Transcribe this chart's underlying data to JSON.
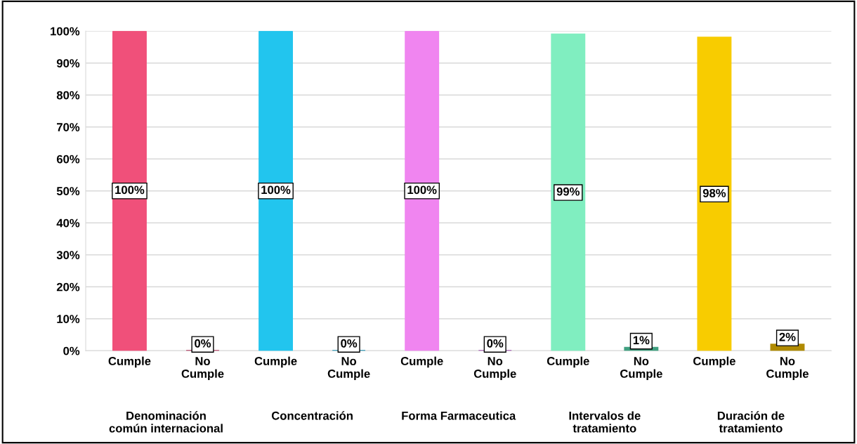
{
  "chart_data": {
    "type": "bar",
    "categories": [
      "Cumple",
      "No\nCumple",
      "Cumple",
      "No\nCumple",
      "Cumple",
      "No\nCumple",
      "Cumple",
      "No\nCumple",
      "Cumple",
      "No\nCumple"
    ],
    "values": [
      100,
      0,
      100,
      0,
      100,
      0,
      99,
      1,
      98,
      2
    ],
    "colors": [
      "#f0507a",
      "#b0305a",
      "#22c5ee",
      "#1a8fb0",
      "#f085f0",
      "#a050b0",
      "#80eec0",
      "#40a080",
      "#f8cc00",
      "#b08a00"
    ],
    "value_labels": [
      "100%",
      "0%",
      "100%",
      "0%",
      "100%",
      "0%",
      "99%",
      "1%",
      "98%",
      "2%"
    ],
    "annotations": [
      "Denominación\ncomún internacional",
      "Concentración",
      "Forma Farmaceutica",
      "Intervalos de\ntratamiento",
      "Duración de\ntratamiento"
    ],
    "ylim": [
      0,
      100
    ],
    "yticks": [
      {
        "value": 0,
        "label": "0%"
      },
      {
        "value": 10,
        "label": "10%"
      },
      {
        "value": 20,
        "label": "20%"
      },
      {
        "value": 30,
        "label": "30%"
      },
      {
        "value": 40,
        "label": "40%"
      },
      {
        "value": 50,
        "label": "50%"
      },
      {
        "value": 60,
        "label": "60%"
      },
      {
        "value": 70,
        "label": "70%"
      },
      {
        "value": 80,
        "label": "80%"
      },
      {
        "value": 90,
        "label": "90%"
      },
      {
        "value": 100,
        "label": "100%"
      }
    ],
    "grid": "y"
  }
}
